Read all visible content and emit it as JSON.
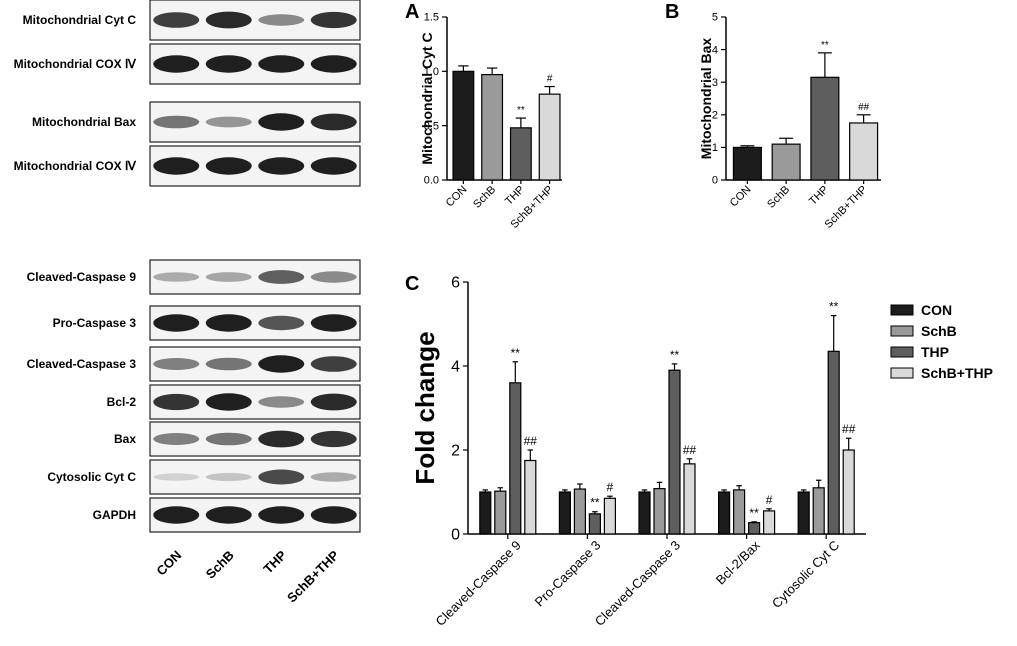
{
  "blot": {
    "mito_rows": [
      "Mitochondrial Cyt C",
      "Mitochondrial COX Ⅳ",
      "Mitochondrial Bax",
      "Mitochondrial COX Ⅳ"
    ],
    "cyto_rows": [
      "Cleaved-Caspase 9",
      "Pro-Caspase 3",
      "Cleaved-Caspase 3",
      "Bcl-2",
      "Bax",
      "Cytosolic Cyt C",
      "GAPDH"
    ],
    "lanes": [
      "CON",
      "SchB",
      "THP",
      "SchB+THP"
    ],
    "mito_intensity": [
      [
        0.8,
        0.9,
        0.45,
        0.85
      ],
      [
        0.95,
        0.95,
        0.95,
        0.95
      ],
      [
        0.55,
        0.4,
        0.95,
        0.9
      ],
      [
        0.95,
        0.95,
        0.95,
        0.95
      ]
    ],
    "cyto_intensity": [
      [
        0.3,
        0.32,
        0.65,
        0.45
      ],
      [
        0.95,
        0.95,
        0.7,
        0.95
      ],
      [
        0.5,
        0.55,
        0.95,
        0.8
      ],
      [
        0.85,
        0.95,
        0.45,
        0.9
      ],
      [
        0.5,
        0.55,
        0.9,
        0.85
      ],
      [
        0.12,
        0.18,
        0.75,
        0.3
      ],
      [
        0.95,
        0.95,
        0.95,
        0.95
      ]
    ]
  },
  "chart_data": [
    {
      "panel": "A",
      "type": "bar",
      "ylabel": "Mitochondrial Cyt C",
      "categories": [
        "CON",
        "SchB",
        "THP",
        "SchB+THP"
      ],
      "values": [
        1.0,
        0.97,
        0.48,
        0.79
      ],
      "errors": [
        0.05,
        0.06,
        0.09,
        0.07
      ],
      "annotations": [
        "",
        "",
        "**",
        "#"
      ],
      "colors": [
        "#1c1c1c",
        "#9a9a9a",
        "#5e5e5e",
        "#d9d9d9"
      ],
      "ylim": [
        0,
        1.5
      ],
      "yticks": [
        "0.0",
        "0.5",
        "1.0",
        "1.5"
      ]
    },
    {
      "panel": "B",
      "type": "bar",
      "ylabel": "Mitochondrial Bax",
      "categories": [
        "CON",
        "SchB",
        "THP",
        "SchB+THP"
      ],
      "values": [
        1.0,
        1.1,
        3.15,
        1.75
      ],
      "errors": [
        0.05,
        0.18,
        0.75,
        0.25
      ],
      "annotations": [
        "",
        "",
        "**",
        "##"
      ],
      "colors": [
        "#1c1c1c",
        "#9a9a9a",
        "#5e5e5e",
        "#d9d9d9"
      ],
      "ylim": [
        0,
        5
      ],
      "yticks": [
        "0",
        "1",
        "2",
        "3",
        "4",
        "5"
      ]
    },
    {
      "panel": "C",
      "type": "bar",
      "ylabel": "Fold change",
      "categories": [
        "Cleaved-Caspase 9",
        "Pro-Caspase 3",
        "Cleaved-Caspase 3",
        "Bcl-2/Bax",
        "Cytosolic Cyt C"
      ],
      "series": [
        {
          "name": "CON",
          "color": "#1c1c1c",
          "values": [
            1.0,
            1.0,
            1.0,
            1.0,
            1.0
          ],
          "errors": [
            0.05,
            0.05,
            0.05,
            0.05,
            0.05
          ],
          "annotations": [
            "",
            "",
            "",
            "",
            ""
          ]
        },
        {
          "name": "SchB",
          "color": "#9a9a9a",
          "values": [
            1.02,
            1.07,
            1.08,
            1.05,
            1.1
          ],
          "errors": [
            0.08,
            0.12,
            0.15,
            0.1,
            0.18
          ],
          "annotations": [
            "",
            "",
            "",
            "",
            ""
          ]
        },
        {
          "name": "THP",
          "color": "#5e5e5e",
          "values": [
            3.6,
            0.48,
            3.9,
            0.27,
            4.35
          ],
          "errors": [
            0.5,
            0.05,
            0.15,
            0.02,
            0.85
          ],
          "annotations": [
            "**",
            "**",
            "**",
            "**",
            "**"
          ]
        },
        {
          "name": "SchB+THP",
          "color": "#d9d9d9",
          "values": [
            1.75,
            0.85,
            1.67,
            0.55,
            2.0
          ],
          "errors": [
            0.25,
            0.05,
            0.12,
            0.05,
            0.28
          ],
          "annotations": [
            "##",
            "#",
            "##",
            "#",
            "##"
          ]
        }
      ],
      "ylim": [
        0,
        6
      ],
      "yticks": [
        "0",
        "2",
        "4",
        "6"
      ],
      "legend": "right"
    }
  ]
}
